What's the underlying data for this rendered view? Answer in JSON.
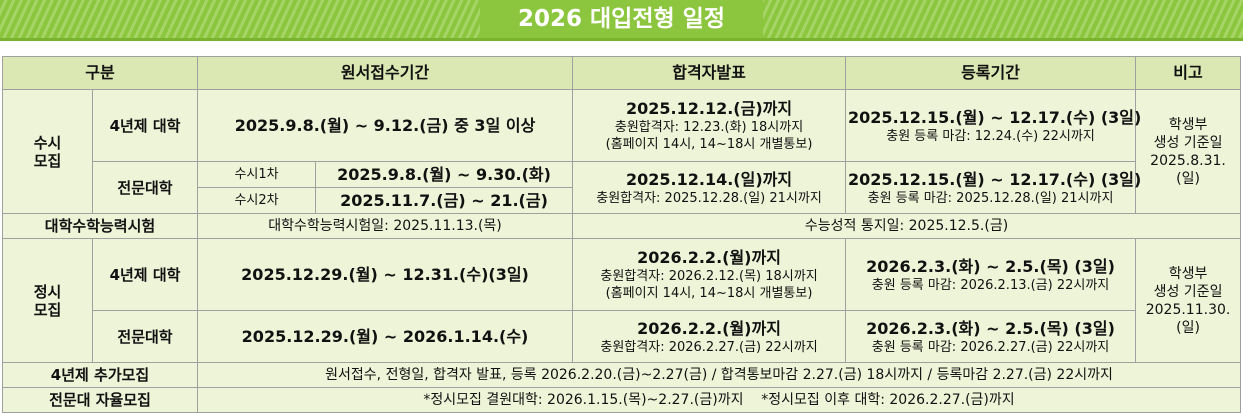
{
  "title": "2026 대입전형 일정",
  "table": {
    "header": [
      "구분",
      "원서접수기간",
      "합격자발표",
      "등록기간",
      "비고"
    ],
    "susi": {
      "group": [
        "수시",
        "모집"
      ],
      "univ": {
        "label": "4년제 대학",
        "apply": "2025.9.8.(월) ~ 9.12.(금) 중 3일 이상",
        "result": [
          "2025.12.12.(금)까지",
          "충원합격자: 12.23.(화) 18시까지",
          "(홈페이지 14시, 14~18시 개별통보)"
        ],
        "register": [
          "2025.12.15.(월) ~ 12.17.(수) (3일)",
          "충원 등록 마감: 12.24.(수) 22시까지"
        ]
      },
      "college": {
        "label": "전문대학",
        "rounds": [
          {
            "name": "수시1차",
            "apply": "2025.9.8.(월) ~ 9.30.(화)"
          },
          {
            "name": "수시2차",
            "apply": "2025.11.7.(금) ~ 21.(금)"
          }
        ],
        "result": [
          "2025.12.14.(일)까지",
          "충원합격자: 2025.12.28.(일) 21시까지"
        ],
        "register": [
          "2025.12.15.(월) ~ 12.17.(수) (3일)",
          "충원 등록 마감: 2025.12.28.(일) 21시까지"
        ]
      },
      "note": [
        "학생부",
        "생성 기준일",
        "2025.8.31.",
        "(일)"
      ]
    },
    "csat": {
      "label": "대학수학능력시험",
      "exam": "대학수학능력시험일: 2025.11.13.(목)",
      "score": "수능성적 통지일: 2025.12.5.(금)"
    },
    "jungsi": {
      "group": [
        "정시",
        "모집"
      ],
      "univ": {
        "label": "4년제 대학",
        "apply": "2025.12.29.(월) ~ 12.31.(수)(3일)",
        "result": [
          "2026.2.2.(월)까지",
          "충원합격자: 2026.2.12.(목) 18시까지",
          "(홈페이지 14시, 14~18시 개별통보)"
        ],
        "register": [
          "2026.2.3.(화) ~ 2.5.(목) (3일)",
          "충원 등록 마감: 2026.2.13.(금) 22시까지"
        ]
      },
      "college": {
        "label": "전문대학",
        "apply": "2025.12.29.(월) ~ 2026.1.14.(수)",
        "result": [
          "2026.2.2.(월)까지",
          "충원합격자: 2026.2.27.(금) 22시까지"
        ],
        "register": [
          "2026.2.3.(화) ~ 2.5.(목) (3일)",
          "충원 등록 마감: 2026.2.27.(금) 22시까지"
        ]
      },
      "note": [
        "학생부",
        "생성 기준일",
        "2025.11.30.",
        "(일)"
      ]
    },
    "extra": {
      "label": "4년제 추가모집",
      "text": "원서접수, 전형일, 합격자 발표, 등록 2026.2.20.(금)~2.27(금) / 합격통보마감 2.27.(금) 18시까지 / 등록마감 2.27.(금) 22시까지"
    },
    "autonomous": {
      "label": "전문대 자율모집",
      "texts": [
        "*정시모집 결원대학: 2026.1.15.(목)~2.27.(금)까지",
        "*정시모집 이후 대학: 2026.2.27.(금)까지"
      ]
    }
  }
}
